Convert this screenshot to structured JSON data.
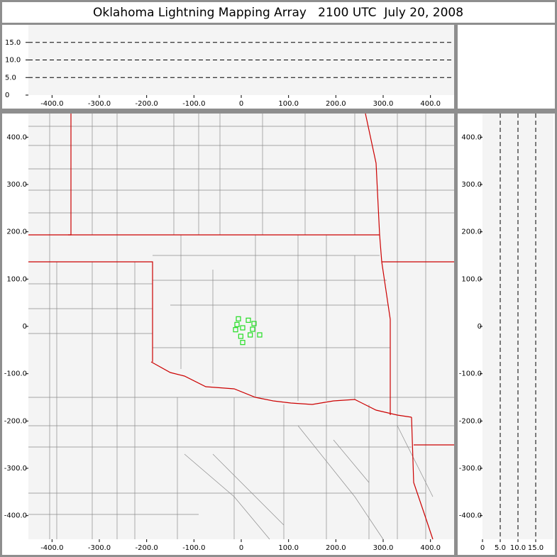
{
  "chart_data": [
    {
      "type": "scatter",
      "title": "Oklahoma Lightning Mapping Array   2100 UTC  July 20, 2008",
      "x": [
        -6,
        15,
        -9,
        27,
        3,
        -12,
        24,
        -1,
        19,
        39,
        3
      ],
      "series": [
        {
          "color": "#22dd22",
          "values": [
            16,
            13,
            4,
            6,
            -3,
            -7,
            -6,
            -21,
            -18,
            -18,
            -34
          ]
        }
      ],
      "xlim": [
        -450,
        450
      ],
      "ylim": [
        -450,
        450
      ],
      "xticks": [
        {
          "value": -400,
          "label": "-400.0"
        },
        {
          "value": -300,
          "label": "-300.0"
        },
        {
          "value": -200,
          "label": "-200.0"
        },
        {
          "value": -100,
          "label": "-100.0"
        },
        0,
        {
          "value": 100,
          "label": "100.0"
        },
        {
          "value": 200,
          "label": "200.0"
        },
        {
          "value": 300,
          "label": "300.0"
        },
        {
          "value": 400,
          "label": "400.0"
        }
      ],
      "yticks": [
        {
          "value": -400,
          "label": "-400.0"
        },
        {
          "value": -300,
          "label": "-300.0"
        },
        {
          "value": -200,
          "label": "-200.0"
        },
        {
          "value": -100,
          "label": "-100.0"
        },
        0,
        {
          "value": 100,
          "label": "100.0"
        },
        {
          "value": 200,
          "label": "200.0"
        },
        {
          "value": 300,
          "label": "300.0"
        },
        {
          "value": 400,
          "label": "400.0"
        }
      ],
      "grid": false
    },
    {
      "type": "scatter",
      "xlim": [
        -450,
        450
      ],
      "ylim": [
        0,
        20
      ],
      "xticks": [
        {
          "value": -400,
          "label": "-400.0"
        },
        {
          "value": -300,
          "label": "-300.0"
        },
        {
          "value": -200,
          "label": "-200.0"
        },
        {
          "value": -100,
          "label": "-100.0"
        },
        0,
        {
          "value": 100,
          "label": "100.0"
        },
        {
          "value": 200,
          "label": "200.0"
        },
        {
          "value": 300,
          "label": "300.0"
        },
        {
          "value": 400,
          "label": "400.0"
        }
      ],
      "yticks": [
        0,
        {
          "value": 5,
          "label": "5.0"
        },
        {
          "value": 10,
          "label": "10.0"
        },
        {
          "value": 15,
          "label": "15.0"
        }
      ],
      "grid": true
    },
    {
      "type": "scatter",
      "xlim": [
        0,
        20
      ],
      "ylim": [
        -450,
        450
      ],
      "xticks": [
        0,
        {
          "value": 5,
          "label": "5.0"
        },
        {
          "value": 10,
          "label": "10.0"
        },
        {
          "value": 15,
          "label": "15.0"
        }
      ],
      "yticks": [
        {
          "value": -400,
          "label": "-400.0"
        },
        {
          "value": -300,
          "label": "-300.0"
        },
        {
          "value": -200,
          "label": "-200.0"
        },
        {
          "value": -100,
          "label": "-100.0"
        },
        0,
        {
          "value": 100,
          "label": "100.0"
        },
        {
          "value": 200,
          "label": "200.0"
        },
        {
          "value": 300,
          "label": "300.0"
        },
        {
          "value": 400,
          "label": "400.0"
        }
      ],
      "grid": true
    }
  ]
}
